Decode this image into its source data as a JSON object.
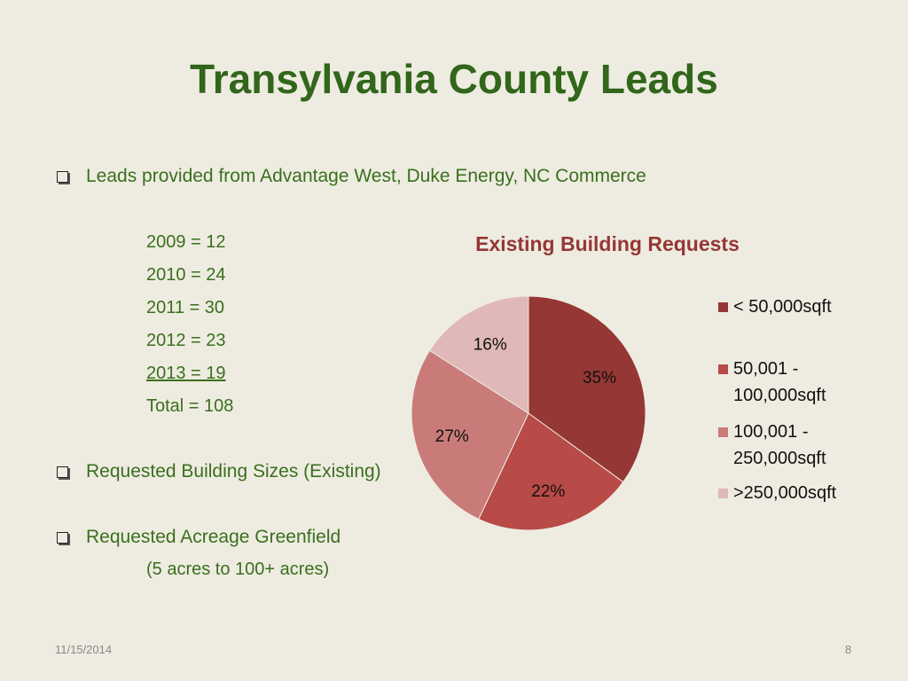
{
  "slide": {
    "title": "Transylvania County Leads",
    "bullets": [
      "Leads provided from Advantage West, Duke Energy, NC Commerce",
      "Requested Building Sizes (Existing)",
      "Requested Acreage Greenfield"
    ],
    "years": [
      "2009 = 12",
      "2010 = 24",
      "2011 = 30",
      "2012 = 23",
      "2013 = 19",
      "Total = 108"
    ],
    "acreage_note": "(5 acres to 100+ acres)",
    "footer_date": "11/15/2014",
    "footer_page": "8"
  },
  "chart_data": {
    "type": "pie",
    "title": "Existing Building Requests",
    "categories": [
      "< 50,000sqft",
      "50,001 - 100,000sqft",
      "100,001 - 250,000sqft",
      ">250,000sqft"
    ],
    "legend_lines": [
      [
        "< 50,000sqft"
      ],
      [
        "50,001 -",
        "100,000sqft"
      ],
      [
        "100,001 -",
        "250,000sqft"
      ],
      [
        ">250,000sqft"
      ]
    ],
    "values": [
      35,
      22,
      27,
      16
    ],
    "labels": [
      "35%",
      "22%",
      "27%",
      "16%"
    ],
    "colors": [
      "#953735",
      "#b84a47",
      "#c97b7a",
      "#dfb8b7"
    ],
    "legend_position": "right"
  }
}
